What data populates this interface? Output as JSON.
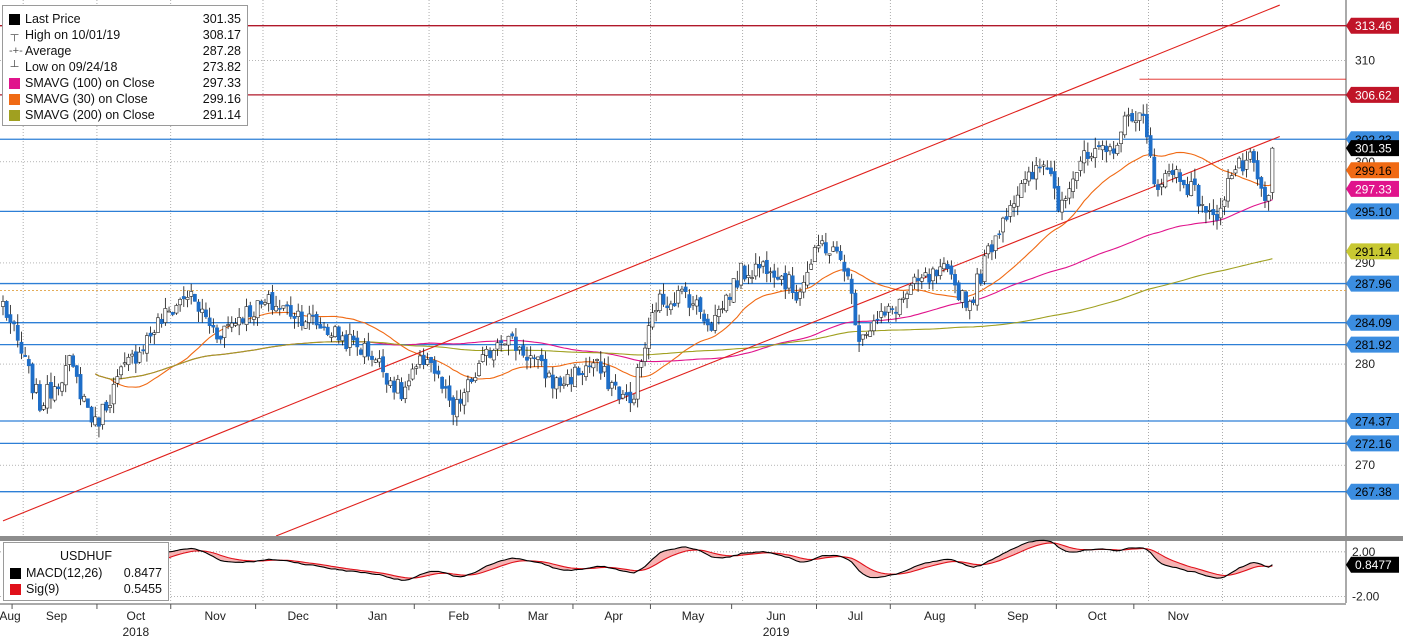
{
  "legend": {
    "items": [
      {
        "label": "Last Price",
        "value": "301.35",
        "swatch": "#000000",
        "glyph": ""
      },
      {
        "label": "High on 10/01/19",
        "value": "308.17",
        "swatch": "",
        "glyph": "┬"
      },
      {
        "label": "Average",
        "value": "287.28",
        "swatch": "",
        "glyph": "-+-"
      },
      {
        "label": "Low on 09/24/18",
        "value": "273.82",
        "swatch": "",
        "glyph": "┴"
      },
      {
        "label": "SMAVG (100)  on Close",
        "value": "297.33",
        "swatch": "#e0148c",
        "glyph": ""
      },
      {
        "label": "SMAVG (30)  on Close",
        "value": "299.16",
        "swatch": "#f06a14",
        "glyph": ""
      },
      {
        "label": "SMAVG (200)  on Close",
        "value": "291.14",
        "swatch": "#a0a020",
        "glyph": ""
      }
    ]
  },
  "macd_legend": {
    "title": "USDHUF",
    "items": [
      {
        "label": "MACD(12,26)",
        "value": "0.8477",
        "swatch": "#000000"
      },
      {
        "label": "Sig(9)",
        "value": "0.5455",
        "swatch": "#e0101a"
      }
    ]
  },
  "colors": {
    "candle_up": "#ffffff",
    "candle_down": "#1e6ec8",
    "level_blue": "#2d7fd6",
    "level_red": "#b0182a",
    "channel": "#e0201c",
    "sma30": "#f06a14",
    "sma100": "#e0148c",
    "sma200": "#a0a020",
    "grid": "#8a8a8a"
  },
  "chart_data": {
    "type": "candlestick",
    "symbol": "USDHUF",
    "ylim": [
      263,
      316
    ],
    "y_ticks": [
      270,
      280,
      290,
      300,
      310
    ],
    "x_month_labels": [
      "Aug",
      "Sep",
      "Oct",
      "Nov",
      "Dec",
      "Jan",
      "Feb",
      "Mar",
      "Apr",
      "May",
      "Jun",
      "Jul",
      "Aug",
      "Sep",
      "Oct",
      "Nov"
    ],
    "x_year_labels": [
      {
        "label": "2018",
        "under": "Oct"
      },
      {
        "label": "2019",
        "under": "Jun"
      }
    ],
    "horizontal_levels": [
      {
        "value": 313.46,
        "label": "313.46",
        "color": "red"
      },
      {
        "value": 306.62,
        "label": "306.62",
        "color": "red"
      },
      {
        "value": 302.23,
        "label": "302.23",
        "color": "blue"
      },
      {
        "value": 295.1,
        "label": "295.10",
        "color": "blue"
      },
      {
        "value": 287.96,
        "label": "287.96",
        "color": "blue"
      },
      {
        "value": 284.09,
        "label": "284.09",
        "color": "blue"
      },
      {
        "value": 281.92,
        "label": "281.92",
        "color": "blue"
      },
      {
        "value": 274.37,
        "label": "274.37",
        "color": "blue"
      },
      {
        "value": 272.16,
        "label": "272.16",
        "color": "blue"
      },
      {
        "value": 267.38,
        "label": "267.38",
        "color": "blue"
      }
    ],
    "right_badges": [
      {
        "label": "301.35",
        "value": 301.35,
        "bg": "#000000",
        "fg": "#ffffff"
      },
      {
        "label": "299.16",
        "value": 299.16,
        "bg": "#f06a14",
        "fg": "#000000"
      },
      {
        "label": "297.33",
        "value": 297.33,
        "bg": "#e0148c",
        "fg": "#ffffff"
      },
      {
        "label": "291.14",
        "value": 291.14,
        "bg": "#c8c832",
        "fg": "#000000"
      }
    ],
    "anchors": [
      [
        0,
        286
      ],
      [
        10,
        276
      ],
      [
        18,
        280
      ],
      [
        25,
        274
      ],
      [
        32,
        279
      ],
      [
        42,
        284
      ],
      [
        50,
        287
      ],
      [
        58,
        283
      ],
      [
        65,
        285
      ],
      [
        72,
        286
      ],
      [
        80,
        285
      ],
      [
        90,
        283
      ],
      [
        100,
        281
      ],
      [
        108,
        277
      ],
      [
        115,
        281
      ],
      [
        122,
        275
      ],
      [
        128,
        279
      ],
      [
        135,
        283
      ],
      [
        142,
        281
      ],
      [
        150,
        278
      ],
      [
        160,
        280
      ],
      [
        170,
        276
      ],
      [
        177,
        286
      ],
      [
        185,
        287
      ],
      [
        192,
        284
      ],
      [
        200,
        289
      ],
      [
        208,
        290
      ],
      [
        215,
        287
      ],
      [
        222,
        292
      ],
      [
        228,
        290
      ],
      [
        232,
        283
      ],
      [
        240,
        285
      ],
      [
        248,
        288
      ],
      [
        255,
        289
      ],
      [
        262,
        286
      ],
      [
        268,
        292
      ],
      [
        273,
        296
      ],
      [
        280,
        299
      ],
      [
        283,
        300
      ],
      [
        286,
        296
      ],
      [
        292,
        300
      ],
      [
        300,
        301
      ],
      [
        306,
        305
      ],
      [
        309,
        304
      ],
      [
        312,
        298
      ],
      [
        318,
        299
      ],
      [
        325,
        296
      ],
      [
        328,
        294
      ],
      [
        333,
        299
      ],
      [
        338,
        300
      ],
      [
        342,
        296
      ]
    ],
    "start_date": "2018-07-27",
    "trading_days": 345,
    "sma_windows": [
      30,
      100,
      200
    ],
    "channel_upper": [
      [
        0,
        264.5
      ],
      [
        346,
        315.5
      ]
    ],
    "channel_lower": [
      [
        74,
        263
      ],
      [
        346,
        302.5
      ]
    ],
    "average_line": 287.28,
    "macd": {
      "ylim": [
        -2.6,
        2.8
      ],
      "y_ticks": [
        {
          "value": 2.0,
          "label": "2.00"
        },
        {
          "value": -2.0,
          "label": "-2.00"
        }
      ],
      "last_badge": "0.8477"
    }
  }
}
